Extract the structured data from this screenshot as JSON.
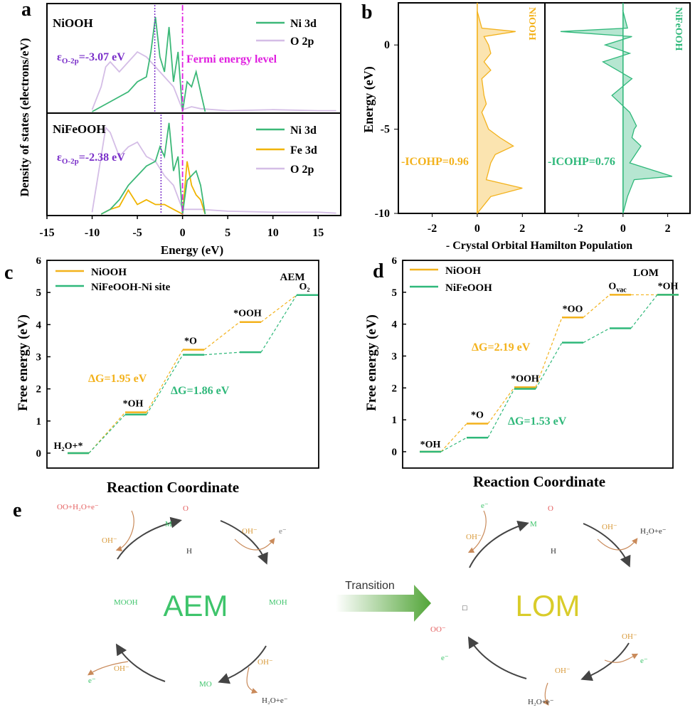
{
  "colors": {
    "ni3d": "#3cb878",
    "o2p": "#d4bde6",
    "fe3d": "#f0b400",
    "niooh": "#f3b21c",
    "nifeooh": "#2fb87a",
    "fermi": "#e020e0",
    "dband": "#7a2fc9",
    "axis": "#000000"
  },
  "panel_a": {
    "letter": "a",
    "ylabel": "Density of states (electrons/eV)",
    "xlabel": "Energy (eV)",
    "xticks": [
      "-15",
      "-10",
      "-5",
      "0",
      "5",
      "10",
      "15"
    ],
    "top": {
      "title": "NiOOH",
      "legend": [
        "Ni 3d",
        "O 2p"
      ],
      "center_prefix": "ε",
      "center_sub": "O-2p",
      "center_value": "=-3.07 eV",
      "fermi_label": "Fermi energy level"
    },
    "bottom": {
      "title": "NiFeOOH",
      "legend": [
        "Ni 3d",
        "Fe 3d",
        "O 2p"
      ],
      "center_prefix": "ε",
      "center_sub": "O-2p",
      "center_value": "=-2.38 eV"
    }
  },
  "panel_b": {
    "letter": "b",
    "ylabel": "Energy (eV)",
    "xlabel": "- Crystal Orbital Hamilton Population",
    "yticks": [
      "0",
      "-5",
      "-10"
    ],
    "xticks_left": [
      "-2",
      "0",
      "2"
    ],
    "xticks_right": [
      "-2",
      "0",
      "2"
    ],
    "left": {
      "title": "NiOOH",
      "icohp": "-ICOHP=0.96"
    },
    "right": {
      "title": "NiFeOOH",
      "icohp": "-ICOHP=0.76"
    }
  },
  "panel_c": {
    "letter": "c",
    "ylabel": "Free energy (eV)",
    "xlabel": "Reaction Coordinate",
    "yticks": [
      "0",
      "1",
      "2",
      "3",
      "4",
      "5",
      "6"
    ],
    "corner": "AEM",
    "legend": [
      "NiOOH",
      "NiFeOOH-Ni site"
    ],
    "dg1": "ΔG=1.95 eV",
    "dg2": "ΔG=1.86 eV",
    "step_labels": [
      "H₂O+*",
      "*OH",
      "*O",
      "*OOH",
      "O₂"
    ]
  },
  "panel_d": {
    "letter": "d",
    "ylabel": "Free energy (eV)",
    "xlabel": "Reaction Coordinate",
    "yticks": [
      "0",
      "1",
      "2",
      "3",
      "4",
      "5",
      "6"
    ],
    "corner": "LOM",
    "legend": [
      "NiOOH",
      "NiFeOOH"
    ],
    "dg1": "ΔG=2.19 eV",
    "dg2": "ΔG=1.53 eV",
    "step_labels": [
      "*OH",
      "*O",
      "*OOH",
      "*OO",
      "O",
      "vac",
      "*OH"
    ]
  },
  "panel_e": {
    "letter": "e",
    "aem": "AEM",
    "lom": "LOM",
    "transition": "Transition",
    "aem_labels": [
      "OO+H₂O+e⁻",
      "OH⁻",
      "OH⁻",
      "e⁻",
      "MOOH",
      "MOH",
      "MO",
      "OH⁻",
      "e⁻",
      "OH⁻",
      "H₂O+e⁻",
      "M",
      "O",
      "H"
    ],
    "lom_labels": [
      "e⁻",
      "OH⁻",
      "H₂O+e⁻",
      "OH⁻",
      "e⁻",
      "OH⁻",
      "e⁻",
      "OH⁻",
      "H₂O+e⁻",
      "OO⁻",
      "□",
      "M",
      "O",
      "H"
    ]
  },
  "chart_data": [
    {
      "type": "line",
      "panel": "a-top",
      "title": "NiOOH",
      "xlabel": "Energy (eV)",
      "ylabel": "Density of states (electrons/eV)",
      "xlim": [
        -15,
        17.5
      ],
      "annotations": [
        "εO-2p=-3.07 eV",
        "Fermi energy level"
      ],
      "vlines": [
        {
          "x": -3.07,
          "style": "dotted"
        },
        {
          "x": 0,
          "style": "dashdot"
        }
      ],
      "series": [
        {
          "name": "Ni 3d",
          "x": [
            -10,
            -9,
            -8,
            -7,
            -6,
            -5,
            -4,
            -3.5,
            -3,
            -2.5,
            -2,
            -1.5,
            -1,
            -0.5,
            0,
            0.5,
            1,
            1.5,
            2,
            2.5
          ],
          "y": [
            0,
            0.05,
            0.1,
            0.15,
            0.2,
            0.3,
            0.35,
            0.6,
            0.95,
            0.55,
            0.4,
            0.85,
            0.3,
            0.6,
            0,
            0.3,
            0.25,
            0.4,
            0.2,
            0
          ]
        },
        {
          "name": "O 2p",
          "x": [
            -10,
            -9,
            -8.5,
            -8,
            -7,
            -6,
            -5,
            -4,
            -3,
            -2,
            -1,
            0,
            1,
            2,
            5,
            10,
            15,
            17
          ],
          "y": [
            0.02,
            0.25,
            0.45,
            0.5,
            0.4,
            0.5,
            0.6,
            0.55,
            0.45,
            0.35,
            0.25,
            0.02,
            0.05,
            0.03,
            0.01,
            0.02,
            0.01,
            0.01
          ]
        }
      ]
    },
    {
      "type": "line",
      "panel": "a-bottom",
      "title": "NiFeOOH",
      "xlabel": "Energy (eV)",
      "ylabel": "Density of states (electrons/eV)",
      "xlim": [
        -15,
        17.5
      ],
      "annotations": [
        "εO-2p=-2.38 eV"
      ],
      "vlines": [
        {
          "x": -2.38,
          "style": "dotted"
        },
        {
          "x": 0,
          "style": "dashdot"
        }
      ],
      "series": [
        {
          "name": "Ni 3d",
          "x": [
            -9,
            -8,
            -7,
            -6,
            -5,
            -4,
            -3,
            -2.5,
            -2,
            -1.5,
            -1,
            -0.5,
            0,
            0.5,
            1,
            1.5,
            2,
            2.5
          ],
          "y": [
            0,
            0.05,
            0.15,
            0.3,
            0.4,
            0.5,
            0.55,
            0.7,
            0.6,
            0.95,
            0.45,
            0.6,
            0,
            0.35,
            0.4,
            0.45,
            0.3,
            0
          ]
        },
        {
          "name": "Fe 3d",
          "x": [
            -9,
            -8,
            -7,
            -6,
            -5,
            -4,
            -3,
            -2,
            -1,
            0,
            0.5,
            1,
            1.5,
            2,
            2.5
          ],
          "y": [
            0,
            0.05,
            0.08,
            0.25,
            0.1,
            0.15,
            0.1,
            0.1,
            0.05,
            0,
            0.55,
            0.3,
            0.2,
            0.15,
            0
          ]
        },
        {
          "name": "O 2p",
          "x": [
            -10,
            -9,
            -8.5,
            -8,
            -7,
            -6,
            -5,
            -4,
            -3,
            -2,
            -1,
            0,
            2,
            5,
            10,
            15,
            17
          ],
          "y": [
            0.02,
            0.6,
            0.9,
            0.85,
            0.6,
            0.7,
            0.75,
            0.6,
            0.55,
            0.4,
            0.3,
            0.05,
            0.05,
            0.03,
            0.02,
            0.02,
            0.01
          ]
        }
      ]
    },
    {
      "type": "area",
      "panel": "b",
      "xlabel": "- Crystal Orbital Hamilton Population",
      "ylabel": "Energy (eV)",
      "ylim": [
        -10,
        2.5
      ],
      "series": [
        {
          "name": "NiOOH",
          "annotation": "-ICOHP=0.96",
          "energy": [
            2,
            1,
            0.8,
            0.5,
            0,
            -0.5,
            -1,
            -1.5,
            -2,
            -3,
            -3.5,
            -4,
            -5,
            -5.5,
            -6,
            -6.5,
            -7,
            -8,
            -8.5,
            -9,
            -10
          ],
          "value": [
            0,
            0.2,
            1.7,
            0.3,
            0.5,
            0.6,
            0.3,
            0.6,
            0.2,
            0.3,
            0.4,
            0.2,
            0.5,
            1.0,
            1.6,
            0.8,
            0.6,
            0.4,
            2.0,
            0.6,
            0
          ]
        },
        {
          "name": "NiFeOOH",
          "annotation": "-ICOHP=0.76",
          "energy": [
            2,
            1,
            0.8,
            0.5,
            0,
            -0.5,
            -1,
            -2,
            -3,
            -4,
            -4.8,
            -5,
            -5.5,
            -6,
            -7,
            -7.8,
            -8,
            -9,
            -10
          ],
          "value": [
            0,
            0.2,
            -2.8,
            0.4,
            -0.8,
            0.3,
            -0.9,
            0.4,
            -0.5,
            0.3,
            0.6,
            0.5,
            0.4,
            0.8,
            0.3,
            2.2,
            0.5,
            0.2,
            0
          ]
        }
      ]
    },
    {
      "type": "line",
      "panel": "c",
      "xlabel": "Reaction Coordinate",
      "ylabel": "Free energy (eV)",
      "ylim": [
        0,
        6
      ],
      "categories": [
        "H₂O+*",
        "*OH",
        "*O",
        "*OOH",
        "O₂"
      ],
      "series": [
        {
          "name": "NiOOH",
          "values": [
            0,
            1.27,
            3.22,
            4.08,
            4.92
          ]
        },
        {
          "name": "NiFeOOH-Ni site",
          "values": [
            0,
            1.2,
            3.06,
            3.14,
            4.92
          ]
        }
      ],
      "annotations": [
        "ΔG=1.95 eV",
        "ΔG=1.86 eV",
        "AEM"
      ]
    },
    {
      "type": "line",
      "panel": "d",
      "xlabel": "Reaction Coordinate",
      "ylabel": "Free energy (eV)",
      "ylim": [
        0,
        6
      ],
      "categories": [
        "*OH",
        "*O",
        "*OOH",
        "*OO",
        "Ovac",
        "*OH"
      ],
      "series": [
        {
          "name": "NiOOH",
          "values": [
            0,
            0.88,
            2.02,
            4.21,
            4.92,
            4.92
          ]
        },
        {
          "name": "NiFeOOH",
          "values": [
            0,
            0.44,
            1.97,
            3.42,
            3.87,
            4.92
          ]
        }
      ],
      "annotations": [
        "ΔG=2.19 eV",
        "ΔG=1.53 eV",
        "LOM"
      ]
    }
  ]
}
